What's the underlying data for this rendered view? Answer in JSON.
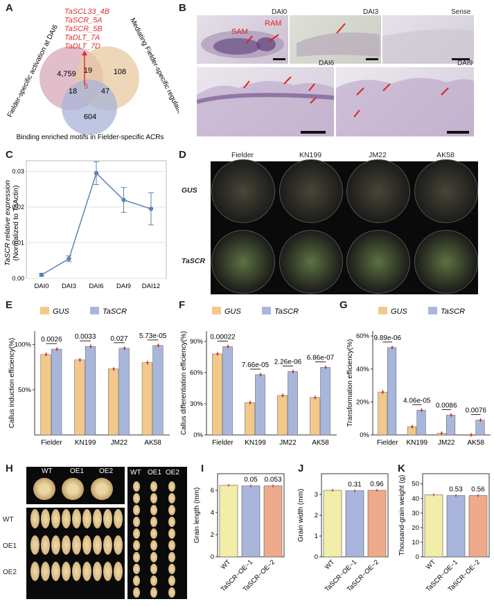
{
  "panel_labels": [
    "A",
    "B",
    "C",
    "D",
    "E",
    "F",
    "G",
    "H",
    "I",
    "J",
    "K"
  ],
  "panelA": {
    "genes": [
      "TaSCL33_4B",
      "TaSCR_5A",
      "TaSCR_5B",
      "TaDLT_7A",
      "TaDLT_7D"
    ],
    "left_label": "Fielder-specific activation at DAI6",
    "right_label": "Mediating Fielder-specific regulations",
    "bottom_label": "Binding enriched motifs in Fielder-specific ACRs",
    "counts": {
      "a_only": "4,759",
      "ab": "19",
      "b_only": "108",
      "ac": "18",
      "abc": "5",
      "bc": "47",
      "c_only": "604"
    },
    "colors": {
      "a": "#d8a8b8",
      "b": "#e8c8a0",
      "c": "#a8b4d8",
      "gene": "#e03030"
    }
  },
  "panelB": {
    "titles": [
      "DAI0",
      "DAI3",
      "Sense",
      "DAI6",
      "DAI9"
    ],
    "annotations": [
      "SAM",
      "RAM"
    ]
  },
  "panelC": {
    "ylabel_line1": "TaSCR relative expression",
    "ylabel_line2": "(Normalized to TaActin)",
    "yticks": [
      "0.00",
      "0.01",
      "0.02",
      "0.03"
    ],
    "chart_data": {
      "type": "line",
      "categories": [
        "DAI0",
        "DAI3",
        "DAI6",
        "DAI9",
        "DAI12"
      ],
      "values": [
        0.001,
        0.0055,
        0.0295,
        0.022,
        0.0195
      ],
      "errors": [
        0.0004,
        0.0008,
        0.0032,
        0.0035,
        0.0045
      ],
      "ylim": [
        0,
        0.033
      ],
      "color": "#5a82b4"
    }
  },
  "panelD": {
    "columns": [
      "Fielder",
      "KN199",
      "JM22",
      "AK58"
    ],
    "rows": [
      "GUS",
      "TaSCR"
    ]
  },
  "legend": {
    "gus": "GUS",
    "tascr": "TaSCR",
    "gus_color": "#f2c98a",
    "tascr_color": "#a9b6dc"
  },
  "panelE": {
    "ylabel": "Callus induction efficiency(%)",
    "yticks": [
      "50%",
      "100%"
    ],
    "chart_data": {
      "type": "bar",
      "categories": [
        "Fielder",
        "KN199",
        "JM22",
        "AK58"
      ],
      "series": [
        {
          "name": "GUS",
          "values": [
            89,
            83,
            73,
            80
          ]
        },
        {
          "name": "TaSCR",
          "values": [
            95,
            98,
            96,
            99
          ]
        }
      ],
      "pvalues": [
        "0.0026",
        "0.0033",
        "0.027",
        "5.73e-05"
      ],
      "ylim": [
        0,
        115
      ]
    }
  },
  "panelF": {
    "ylabel": "Callus differentiation efficiency(%)",
    "yticks": [
      "0%",
      "30%",
      "60%",
      "90%"
    ],
    "chart_data": {
      "type": "bar",
      "categories": [
        "Fielder",
        "KN199",
        "JM22",
        "AK58"
      ],
      "series": [
        {
          "name": "GUS",
          "values": [
            78,
            31,
            38,
            36
          ]
        },
        {
          "name": "TaSCR",
          "values": [
            85,
            58,
            61,
            65
          ]
        }
      ],
      "pvalues": [
        "0.00022",
        "7.66e-05",
        "2.26e-06",
        "6.86e-07"
      ],
      "ylim": [
        0,
        100
      ]
    }
  },
  "panelG": {
    "ylabel": "Transformation efficiency(%)",
    "yticks": [
      "0%",
      "20%",
      "40%",
      "60%"
    ],
    "chart_data": {
      "type": "bar",
      "categories": [
        "Fielder",
        "KN199",
        "JM22",
        "AK58"
      ],
      "series": [
        {
          "name": "GUS",
          "values": [
            26,
            5,
            1,
            0
          ]
        },
        {
          "name": "TaSCR",
          "values": [
            53,
            15,
            12,
            9
          ]
        }
      ],
      "pvalues": [
        "9.89e-06",
        "4.06e-05",
        "0.0086",
        "0.0076"
      ],
      "ylim": [
        0,
        63
      ]
    }
  },
  "panelH": {
    "top_labels": [
      "WT",
      "OE1",
      "OE2"
    ],
    "right_labels": [
      "WT",
      "OE1",
      "OE2"
    ],
    "row_labels": [
      "WT",
      "OE1",
      "OE2"
    ]
  },
  "panelI": {
    "ylabel": "Grain length (mm)",
    "yticks": [
      "0",
      "2",
      "4",
      "6"
    ],
    "chart_data": {
      "type": "bar",
      "categories": [
        "WT",
        "TaSCR−OE−1",
        "TaSCR−OE−2"
      ],
      "values": [
        6.45,
        6.4,
        6.4
      ],
      "pvalues": [
        "0.05",
        "0.053"
      ],
      "ylim": [
        0,
        7.5
      ]
    }
  },
  "panelJ": {
    "ylabel": "Grain width (mm)",
    "yticks": [
      "0",
      "1",
      "2",
      "3"
    ],
    "chart_data": {
      "type": "bar",
      "categories": [
        "WT",
        "TaSCR−OE−1",
        "TaSCR−OE−2"
      ],
      "values": [
        3.2,
        3.18,
        3.2
      ],
      "pvalues": [
        "0.31",
        "0.96"
      ],
      "ylim": [
        0,
        4
      ]
    }
  },
  "panelK": {
    "ylabel": "Thousand-grain weight (g)",
    "yticks": [
      "0",
      "10",
      "20",
      "30",
      "40",
      "50"
    ],
    "chart_data": {
      "type": "bar",
      "categories": [
        "WT",
        "TaSCR−OE−1",
        "TaSCR−OE−2"
      ],
      "values": [
        42.5,
        42,
        42
      ],
      "pvalues": [
        "0.53",
        "0.56"
      ],
      "ylim": [
        0,
        57
      ]
    }
  },
  "ijk_colors": [
    "#f2eeaa",
    "#aab5dc",
    "#eeaa8a"
  ]
}
